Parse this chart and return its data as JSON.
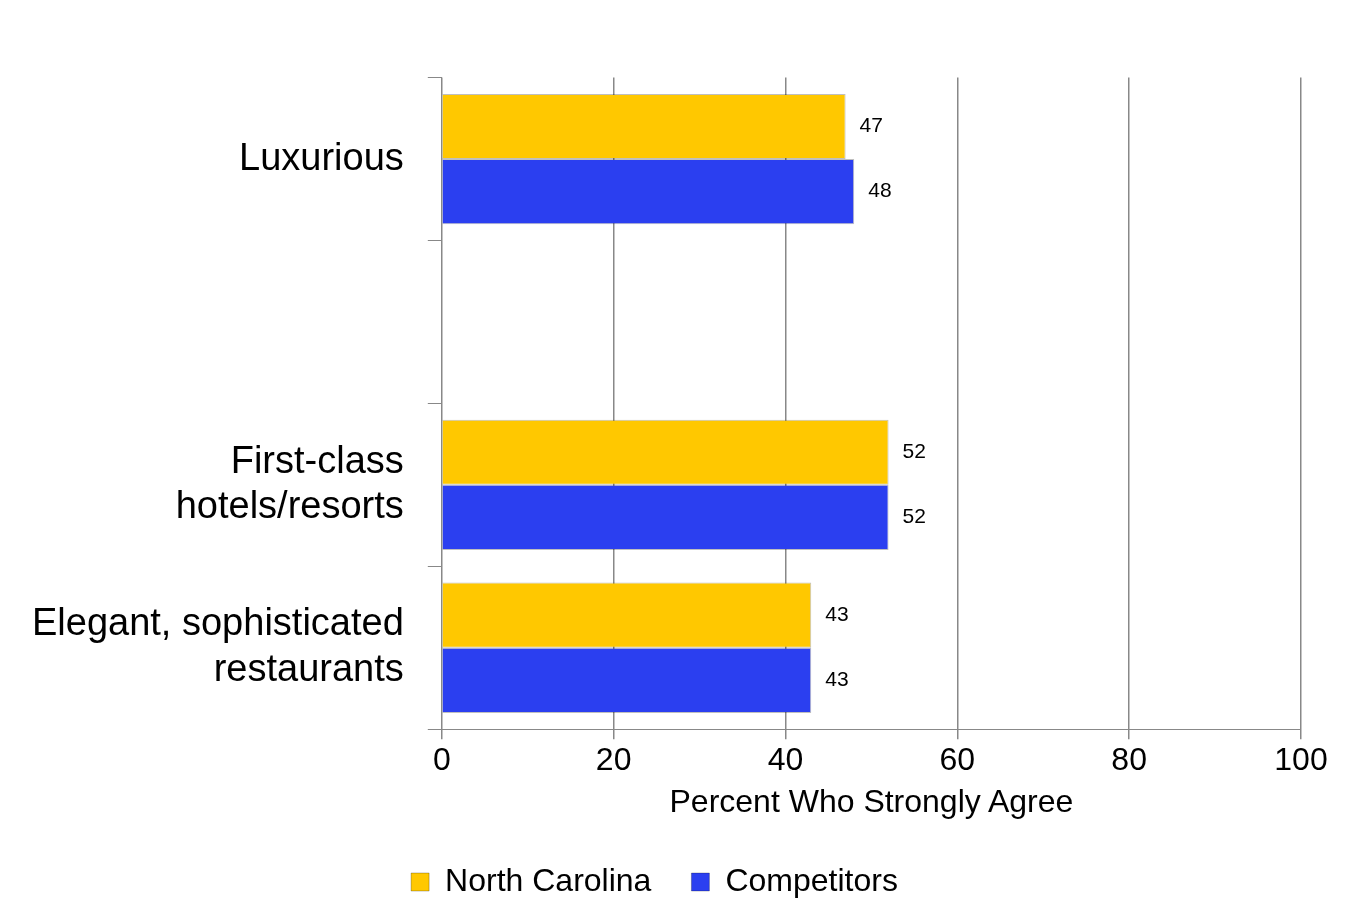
{
  "chart_data": {
    "type": "bar",
    "orientation": "horizontal",
    "categories": [
      "Luxurious",
      null,
      "First-class hotels/resorts",
      "Elegant, sophisticated restaurants"
    ],
    "series": [
      {
        "name": "North Carolina",
        "color": "#ffc800",
        "values": [
          47,
          null,
          52,
          43
        ]
      },
      {
        "name": "Competitors",
        "color": "#2b3ff0",
        "values": [
          48,
          null,
          52,
          43
        ]
      }
    ],
    "xlabel": "Percent Who Strongly Agree",
    "xlim": [
      0,
      100
    ],
    "xticks": [
      0,
      20,
      40,
      60,
      80,
      100
    ],
    "grid": "x",
    "legend": "bottom",
    "data_labels": true
  }
}
